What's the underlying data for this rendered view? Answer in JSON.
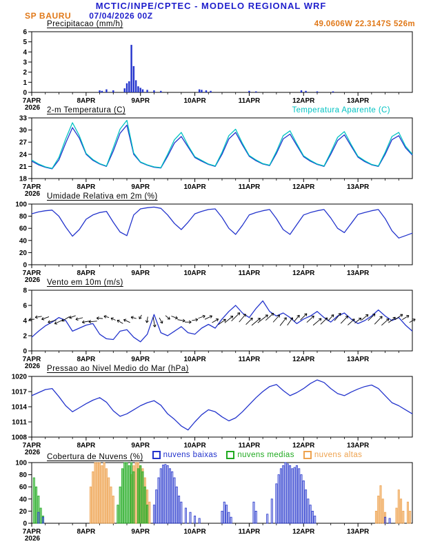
{
  "header": {
    "title": "MCTIC/INPE/CPTEC - MODELO REGIONAL WRF",
    "station": "SP BAURU",
    "run": "07/04/2026 00Z",
    "location": "49.0606W 22.3147S 526m"
  },
  "colors": {
    "header_blue": "#2020cc",
    "accent_orange": "#e07818",
    "line_blue": "#2233cc",
    "cyan": "#00c2c2",
    "green": "#1faa1f",
    "cloud_orange": "#eea24e"
  },
  "x_axis": {
    "hours_total": 168,
    "minor_tick_hours": 6,
    "tick_hours": [
      0,
      24,
      48,
      72,
      96,
      120,
      144
    ],
    "tick_labels": [
      "7APR",
      "8APR",
      "9APR",
      "10APR",
      "11APR",
      "12APR",
      "13APR"
    ],
    "year_label": "2026"
  },
  "chart_data": [
    {
      "id": "precipitation",
      "type": "bar",
      "title": "Precipitacao (mm/h)",
      "ylim": [
        0,
        6
      ],
      "yticks": [
        0,
        1,
        2,
        3,
        4,
        5,
        6
      ],
      "color": "#2233cc",
      "bars": [
        [
          30,
          0.2
        ],
        [
          31,
          0.15
        ],
        [
          33,
          0.3
        ],
        [
          36,
          0.2
        ],
        [
          41,
          0.4
        ],
        [
          42,
          0.9
        ],
        [
          43,
          1.1
        ],
        [
          44,
          4.7
        ],
        [
          45,
          2.6
        ],
        [
          46,
          1.2
        ],
        [
          47,
          0.6
        ],
        [
          48,
          0.45
        ],
        [
          49,
          0.3
        ],
        [
          51,
          0.25
        ],
        [
          54,
          0.2
        ],
        [
          57,
          0.15
        ],
        [
          74,
          0.3
        ],
        [
          75,
          0.25
        ],
        [
          77,
          0.2
        ],
        [
          79,
          0.15
        ],
        [
          96,
          0.15
        ],
        [
          99,
          0.1
        ],
        [
          119,
          0.2
        ],
        [
          121,
          0.15
        ],
        [
          126,
          0.1
        ],
        [
          133,
          0.1
        ]
      ]
    },
    {
      "id": "temperature-2m",
      "type": "line",
      "title": "2-m Temperatura (C)",
      "ylim": [
        18,
        33
      ],
      "yticks": [
        18,
        21,
        24,
        27,
        30,
        33
      ],
      "x_step": 3,
      "series": [
        {
          "name": "temperatura",
          "color": "#2233cc",
          "y": [
            22.3,
            21.4,
            20.8,
            20.4,
            22.6,
            26.8,
            30.6,
            28.0,
            24.0,
            22.5,
            21.6,
            21.0,
            24.8,
            29.2,
            31.2,
            24.0,
            22.0,
            21.3,
            20.8,
            20.6,
            23.5,
            26.8,
            28.4,
            25.8,
            23.2,
            22.3,
            21.5,
            21.0,
            24.0,
            27.8,
            29.4,
            26.3,
            23.5,
            22.4,
            21.6,
            21.2,
            24.2,
            27.8,
            29.0,
            26.2,
            23.4,
            22.3,
            21.5,
            21.0,
            24.0,
            27.4,
            28.8,
            26.0,
            23.3,
            22.2,
            21.4,
            21.0,
            24.0,
            27.6,
            28.6,
            25.6,
            23.8
          ]
        },
        {
          "name": "temperatura-aparente",
          "color": "#00c2c2",
          "y": [
            22.6,
            21.6,
            20.9,
            20.5,
            23.2,
            27.8,
            31.8,
            28.6,
            24.2,
            22.7,
            21.7,
            21.1,
            25.6,
            30.2,
            32.4,
            24.3,
            22.1,
            21.4,
            20.9,
            20.7,
            24.0,
            27.6,
            29.4,
            26.2,
            23.4,
            22.5,
            21.6,
            21.1,
            24.5,
            28.6,
            30.2,
            26.7,
            23.7,
            22.6,
            21.7,
            21.3,
            24.7,
            28.6,
            29.8,
            26.6,
            23.6,
            22.5,
            21.6,
            21.1,
            24.5,
            28.2,
            29.6,
            26.4,
            23.5,
            22.4,
            21.5,
            21.1,
            24.5,
            28.4,
            29.4,
            26.0,
            24.0
          ]
        }
      ],
      "legend": [
        {
          "label": "Temperatura Aparente (C)",
          "color": "#00c2c2"
        }
      ]
    },
    {
      "id": "relative-humidity-2m",
      "type": "line",
      "title": "Umidade Relativa em 2m (%)",
      "ylim": [
        0,
        100
      ],
      "yticks": [
        0,
        20,
        40,
        60,
        80,
        100
      ],
      "x_step": 3,
      "series": [
        {
          "name": "umidade-relativa",
          "color": "#2233cc",
          "y": [
            84,
            87,
            89,
            90,
            80,
            62,
            47,
            58,
            75,
            82,
            86,
            88,
            70,
            54,
            48,
            82,
            92,
            94,
            95,
            93,
            82,
            68,
            58,
            70,
            84,
            88,
            91,
            92,
            78,
            60,
            50,
            65,
            82,
            86,
            89,
            91,
            76,
            58,
            50,
            66,
            82,
            86,
            89,
            91,
            77,
            60,
            53,
            68,
            83,
            86,
            89,
            91,
            76,
            56,
            44,
            48,
            52
          ]
        }
      ]
    },
    {
      "id": "wind-10m",
      "type": "line",
      "title": "Vento em 10m (m/s)",
      "ylim": [
        0,
        8
      ],
      "yticks": [
        0,
        2,
        4,
        6,
        8
      ],
      "x_step": 3,
      "series": [
        {
          "name": "velocidade-vento",
          "color": "#2233cc",
          "y": [
            1.8,
            2.6,
            3.3,
            3.8,
            4.4,
            4.0,
            2.6,
            3.0,
            3.4,
            3.6,
            2.2,
            1.6,
            1.5,
            2.6,
            2.8,
            1.8,
            1.2,
            2.2,
            4.8,
            2.4,
            2.0,
            2.6,
            3.2,
            2.4,
            2.2,
            3.0,
            3.5,
            3.0,
            4.2,
            5.2,
            6.0,
            5.0,
            4.4,
            5.6,
            6.6,
            5.2,
            4.6,
            5.0,
            4.4,
            3.6,
            4.2,
            4.6,
            5.2,
            4.4,
            3.8,
            4.6,
            5.0,
            4.2,
            3.6,
            4.0,
            4.6,
            5.4,
            4.6,
            4.0,
            4.4,
            3.4,
            2.6
          ]
        }
      ],
      "barbs": {
        "row_value": 4.15,
        "angles": [
          185,
          190,
          200,
          195,
          205,
          210,
          200,
          195,
          190,
          185,
          175,
          165,
          155,
          150,
          155,
          165,
          240,
          260,
          280,
          300,
          320,
          340,
          350,
          0,
          10,
          20,
          25,
          30,
          35,
          40,
          45,
          50,
          45,
          40,
          38,
          42,
          48,
          52,
          55,
          50,
          45,
          42,
          40,
          44,
          48,
          50,
          46,
          42,
          38,
          40,
          44,
          46,
          42,
          38,
          35,
          32,
          30
        ]
      }
    },
    {
      "id": "mean-sea-level-pressure",
      "type": "line",
      "title": "Pressao ao Nivel Medio do Mar (hPa)",
      "ylim": [
        1008,
        1020
      ],
      "yticks": [
        1008,
        1011,
        1014,
        1017,
        1020
      ],
      "x_step": 3,
      "series": [
        {
          "name": "pressao",
          "color": "#2233cc",
          "y": [
            1016.2,
            1016.8,
            1017.4,
            1017.6,
            1016.0,
            1014.2,
            1013.0,
            1013.8,
            1014.6,
            1015.3,
            1015.8,
            1014.9,
            1013.2,
            1012.1,
            1012.6,
            1013.4,
            1014.2,
            1014.8,
            1015.2,
            1014.3,
            1012.6,
            1011.5,
            1010.2,
            1009.4,
            1011.0,
            1012.4,
            1013.4,
            1013.0,
            1012.0,
            1011.2,
            1011.8,
            1013.0,
            1014.4,
            1015.8,
            1017.0,
            1018.0,
            1018.4,
            1017.2,
            1016.2,
            1016.8,
            1017.6,
            1018.6,
            1019.3,
            1018.8,
            1017.6,
            1016.6,
            1016.2,
            1016.9,
            1017.5,
            1018.0,
            1018.3,
            1017.6,
            1016.2,
            1014.8,
            1014.2,
            1013.4,
            1012.6
          ]
        }
      ]
    },
    {
      "id": "cloud-cover",
      "type": "bar-multi",
      "title": "Cobertura de Nuvens (%)",
      "ylim": [
        0,
        100
      ],
      "yticks": [
        0,
        20,
        40,
        60,
        80,
        100
      ],
      "series": [
        {
          "name": "nuvens-altas",
          "label": "nuvens altas",
          "color": "#eea24e",
          "fill_opacity": 0.55,
          "bars": [
            [
              26,
              60
            ],
            [
              27,
              85
            ],
            [
              28,
              100
            ],
            [
              29,
              100
            ],
            [
              30,
              100
            ],
            [
              31,
              95
            ],
            [
              32,
              100
            ],
            [
              33,
              90
            ],
            [
              34,
              75
            ],
            [
              35,
              60
            ],
            [
              36,
              45
            ],
            [
              44,
              80
            ],
            [
              45,
              95
            ],
            [
              46,
              100
            ],
            [
              47,
              100
            ],
            [
              48,
              95
            ],
            [
              49,
              90
            ],
            [
              50,
              75
            ],
            [
              51,
              55
            ],
            [
              52,
              35
            ],
            [
              152,
              20
            ],
            [
              153,
              45
            ],
            [
              154,
              62
            ],
            [
              155,
              40
            ],
            [
              156,
              18
            ],
            [
              161,
              25
            ],
            [
              162,
              55
            ],
            [
              163,
              40
            ],
            [
              164,
              20
            ],
            [
              166,
              35
            ],
            [
              167,
              20
            ]
          ]
        },
        {
          "name": "nuvens-medias",
          "label": "nuvens medias",
          "color": "#1faa1f",
          "fill_opacity": 0.5,
          "bars": [
            [
              1,
              75
            ],
            [
              2,
              60
            ],
            [
              3,
              45
            ],
            [
              4,
              25
            ],
            [
              5,
              12
            ],
            [
              38,
              30
            ],
            [
              39,
              60
            ],
            [
              40,
              90
            ],
            [
              41,
              100
            ],
            [
              42,
              100
            ],
            [
              43,
              95
            ],
            [
              44,
              100
            ],
            [
              45,
              85
            ],
            [
              47,
              90
            ],
            [
              48,
              95
            ],
            [
              49,
              85
            ],
            [
              50,
              60
            ],
            [
              51,
              30
            ]
          ]
        },
        {
          "name": "nuvens-baixas",
          "label": "nuvens baixas",
          "color": "#2233cc",
          "fill_opacity": 0.25,
          "bars": [
            [
              3,
              18
            ],
            [
              5,
              10
            ],
            [
              54,
              30
            ],
            [
              55,
              55
            ],
            [
              56,
              75
            ],
            [
              57,
              90
            ],
            [
              58,
              96
            ],
            [
              59,
              97
            ],
            [
              60,
              95
            ],
            [
              61,
              90
            ],
            [
              62,
              85
            ],
            [
              63,
              75
            ],
            [
              64,
              60
            ],
            [
              65,
              45
            ],
            [
              66,
              35
            ],
            [
              68,
              25
            ],
            [
              70,
              18
            ],
            [
              72,
              12
            ],
            [
              74,
              8
            ],
            [
              84,
              20
            ],
            [
              85,
              35
            ],
            [
              86,
              30
            ],
            [
              87,
              18
            ],
            [
              88,
              10
            ],
            [
              98,
              35
            ],
            [
              99,
              20
            ],
            [
              104,
              15
            ],
            [
              106,
              40
            ],
            [
              108,
              65
            ],
            [
              109,
              80
            ],
            [
              110,
              90
            ],
            [
              111,
              95
            ],
            [
              112,
              100
            ],
            [
              113,
              98
            ],
            [
              114,
              95
            ],
            [
              115,
              90
            ],
            [
              116,
              92
            ],
            [
              117,
              95
            ],
            [
              118,
              90
            ],
            [
              119,
              80
            ],
            [
              120,
              70
            ],
            [
              121,
              55
            ],
            [
              122,
              40
            ],
            [
              123,
              30
            ],
            [
              124,
              20
            ],
            [
              125,
              12
            ],
            [
              156,
              10
            ],
            [
              158,
              8
            ]
          ]
        }
      ],
      "legend": [
        {
          "label": "nuvens baixas",
          "color": "#2233cc"
        },
        {
          "label": "nuvens medias",
          "color": "#1faa1f"
        },
        {
          "label": "nuvens altas",
          "color": "#eea24e"
        }
      ]
    }
  ]
}
